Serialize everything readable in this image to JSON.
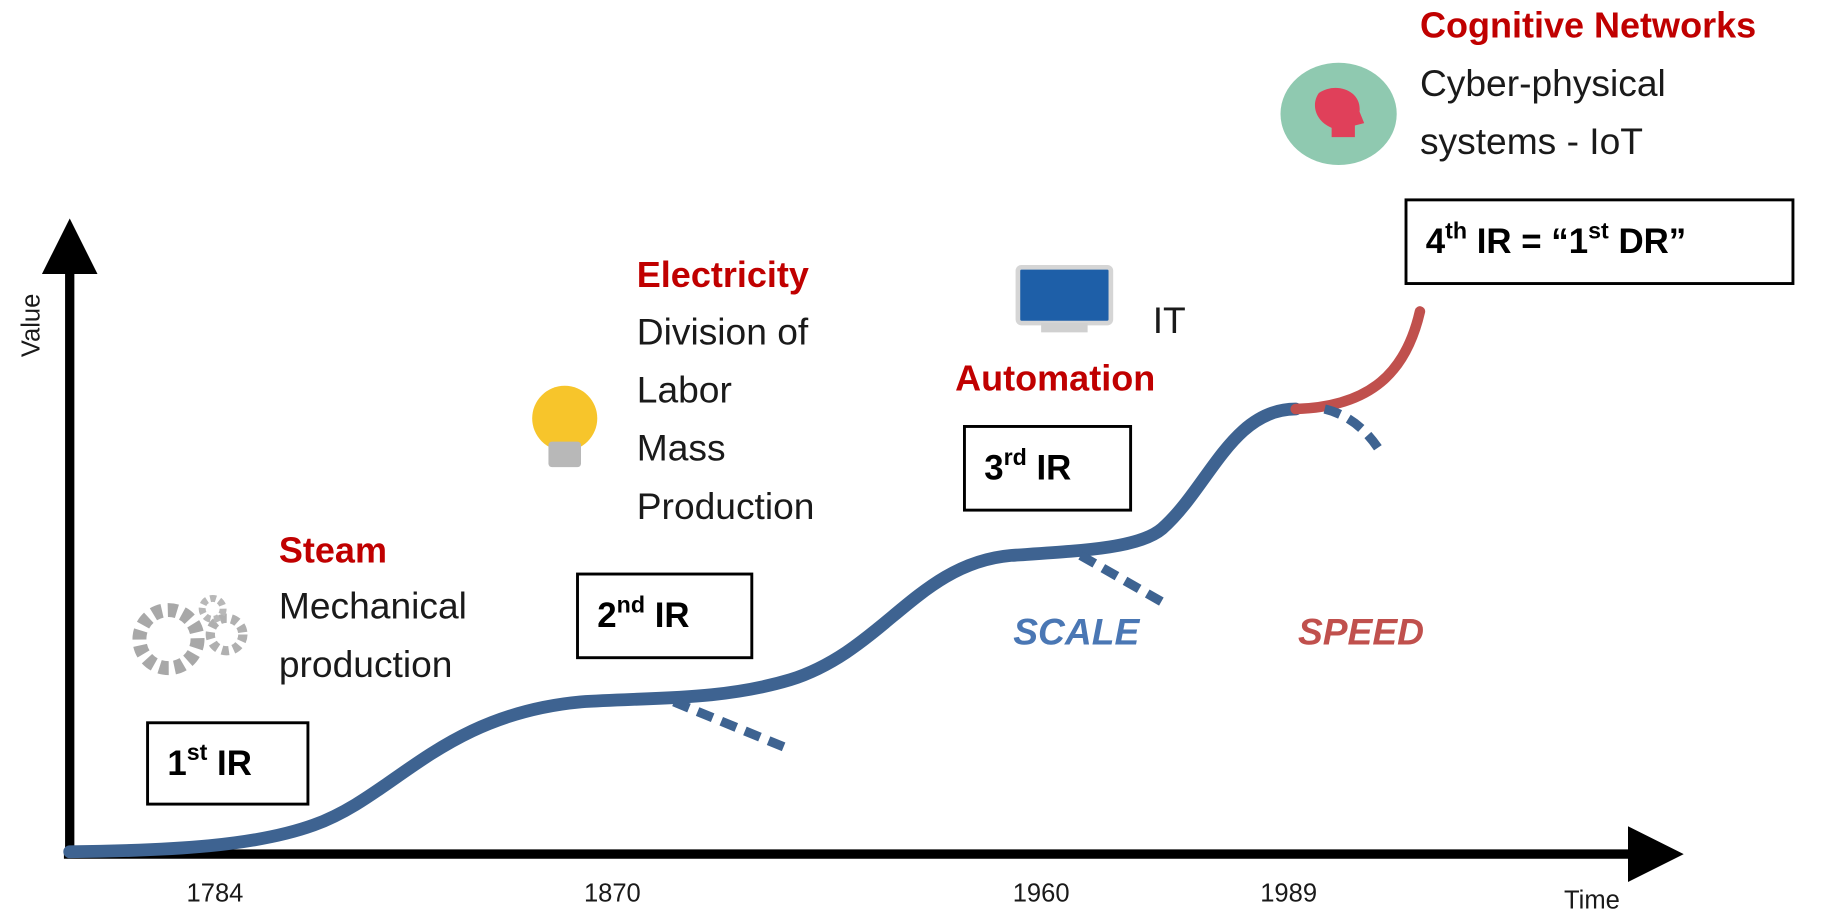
{
  "axes": {
    "y_label": "Value",
    "x_label": "Time"
  },
  "years": [
    "1784",
    "1870",
    "1960",
    "1989"
  ],
  "eras": [
    {
      "label": [
        {
          "text": "1"
        },
        {
          "text": "st",
          "sup": true
        },
        {
          "text": " IR"
        }
      ],
      "heading": "Steam",
      "description": [
        "Mechanical",
        "production"
      ]
    },
    {
      "label": [
        {
          "text": "2"
        },
        {
          "text": "nd",
          "sup": true
        },
        {
          "text": " IR"
        }
      ],
      "heading": "Electricity",
      "description": [
        "Division of",
        "Labor",
        "Mass",
        "Production"
      ]
    },
    {
      "label": [
        {
          "text": "3"
        },
        {
          "text": "rd",
          "sup": true
        },
        {
          "text": " IR"
        }
      ],
      "heading": "Automation",
      "description": [
        "IT"
      ]
    },
    {
      "label": [
        {
          "text": "4"
        },
        {
          "text": "th",
          "sup": true
        },
        {
          "text": " IR = “1"
        },
        {
          "text": "st",
          "sup": true
        },
        {
          "text": " DR”"
        }
      ],
      "heading": "Cognitive Networks",
      "description": [
        "Cyber-physical",
        "systems - IoT"
      ]
    }
  ],
  "annotations": {
    "scale": "SCALE",
    "speed": "SPEED"
  }
}
